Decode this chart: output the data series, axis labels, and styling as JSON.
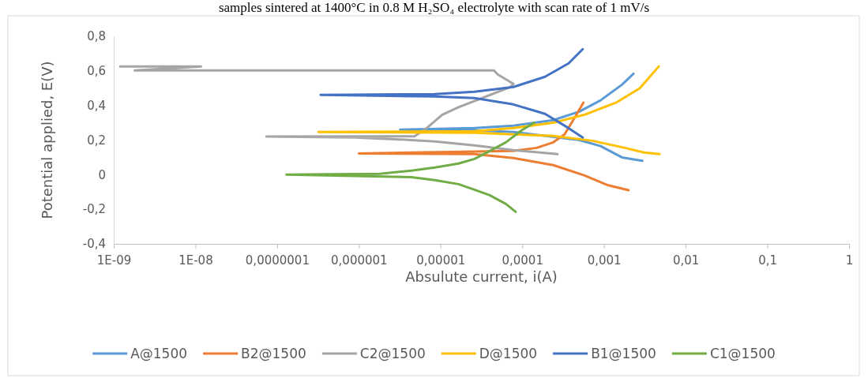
{
  "chart_data": {
    "type": "line",
    "title": "samples sintered at 1400°C in 0.8 M H₂SO₄ electrolyte with scan rate of 1 mV/s",
    "xlabel": "Absulute current, i(A)",
    "ylabel": "Potential applied, E(V)",
    "log": "x",
    "grid": false,
    "legend": "bottom",
    "marker": "none",
    "line_style": "solid",
    "xlim": [
      1e-09,
      1
    ],
    "xticks": [
      {
        "value": 1e-09,
        "label": "1E-09"
      },
      {
        "value": 1e-08,
        "label": "1E-08"
      },
      {
        "value": 1e-07,
        "label": "0,0000001"
      },
      {
        "value": 1e-06,
        "label": "0,000001"
      },
      {
        "value": 1e-05,
        "label": "0,00001"
      },
      {
        "value": 0.0001,
        "label": "0,0001"
      },
      {
        "value": 0.001,
        "label": "0,001"
      },
      {
        "value": 0.01,
        "label": "0,01"
      },
      {
        "value": 0.1,
        "label": "0,1"
      },
      {
        "value": 1,
        "label": "1"
      }
    ],
    "ylim": [
      -0.4,
      0.8
    ],
    "yticks": [
      {
        "value": -0.4,
        "label": "-0,4"
      },
      {
        "value": -0.2,
        "label": "-0,2"
      },
      {
        "value": 0,
        "label": "0"
      },
      {
        "value": 0.2,
        "label": "0,2"
      },
      {
        "value": 0.4,
        "label": "0,4"
      },
      {
        "value": 0.6,
        "label": "0,6"
      },
      {
        "value": 0.8,
        "label": "0,8"
      }
    ],
    "series": [
      {
        "name": "A@1500",
        "color": "#5b9bd5",
        "x": [
          0.00295,
          0.00166,
          0.00091,
          0.0005,
          7.8e-05,
          2.6e-05,
          3.2e-06,
          2.6e-05,
          7.8e-05,
          0.00024,
          0.0005,
          0.00091,
          0.00166,
          0.0023
        ],
        "values": [
          0.08,
          0.1,
          0.165,
          0.2,
          0.247,
          0.256,
          0.26,
          0.27,
          0.283,
          0.315,
          0.365,
          0.43,
          0.52,
          0.584
        ]
      },
      {
        "name": "B2@1500",
        "color": "#ed7d31",
        "x": [
          0.002,
          0.0011,
          0.00058,
          0.00024,
          7.8e-05,
          2.6e-05,
          1e-06,
          7.8e-05,
          0.00015,
          0.00024,
          0.00033,
          0.00042,
          0.00056
        ],
        "values": [
          -0.09,
          -0.06,
          -0.005,
          0.055,
          0.096,
          0.119,
          0.123,
          0.137,
          0.155,
          0.187,
          0.233,
          0.315,
          0.416
        ]
      },
      {
        "name": "C2@1500",
        "color": "#a5a5a5",
        "x": [
          0.00027,
          7.8e-05,
          2.6e-05,
          8.5e-06,
          2.75e-06,
          9.1e-07,
          7.4e-08,
          4.8e-06,
          6.8e-06,
          1.05e-05,
          1.66e-05,
          4e-05,
          7.2e-05,
          7.8e-05,
          5e-05,
          4.5e-05,
          1.8e-09,
          1.17e-08,
          1.2e-09
        ],
        "values": [
          0.119,
          0.142,
          0.169,
          0.192,
          0.205,
          0.215,
          0.22,
          0.222,
          0.27,
          0.347,
          0.39,
          0.46,
          0.507,
          0.525,
          0.58,
          0.603,
          0.603,
          0.626,
          0.626
        ]
      },
      {
        "name": "D@1500",
        "color": "#ffc000",
        "x": [
          0.0048,
          0.0031,
          0.0018,
          0.00072,
          0.00024,
          7.8e-05,
          2.6e-05,
          3.2e-07,
          2.6e-05,
          7.8e-05,
          0.00024,
          0.00058,
          0.0014,
          0.00275,
          0.0047
        ],
        "values": [
          0.119,
          0.128,
          0.155,
          0.196,
          0.224,
          0.233,
          0.242,
          0.247,
          0.251,
          0.27,
          0.3,
          0.347,
          0.416,
          0.5,
          0.626
        ]
      },
      {
        "name": "B1@1500",
        "color": "#4472c4",
        "x": [
          0.00055,
          0.00037,
          0.00019,
          7.8e-05,
          2.6e-05,
          8.5e-06,
          3.4e-07,
          8.5e-06,
          2.6e-05,
          7.8e-05,
          0.00019,
          0.00037,
          0.00055
        ],
        "values": [
          0.215,
          0.269,
          0.352,
          0.406,
          0.443,
          0.452,
          0.461,
          0.466,
          0.479,
          0.507,
          0.566,
          0.644,
          0.726
        ]
      },
      {
        "name": "C1@1500",
        "color": "#70ad47",
        "x": [
          8.3e-05,
          6.3e-05,
          4e-05,
          2.6e-05,
          1.66e-05,
          8.5e-06,
          4.4e-06,
          1.3e-07,
          1.8e-06,
          4.4e-06,
          8.5e-06,
          1.66e-05,
          2.6e-05,
          4e-05,
          6.3e-05,
          9.8e-05,
          0.00014
        ],
        "values": [
          -0.215,
          -0.169,
          -0.119,
          -0.087,
          -0.055,
          -0.032,
          -0.014,
          0.0,
          0.005,
          0.023,
          0.041,
          0.064,
          0.091,
          0.137,
          0.187,
          0.256,
          0.3
        ]
      }
    ]
  }
}
